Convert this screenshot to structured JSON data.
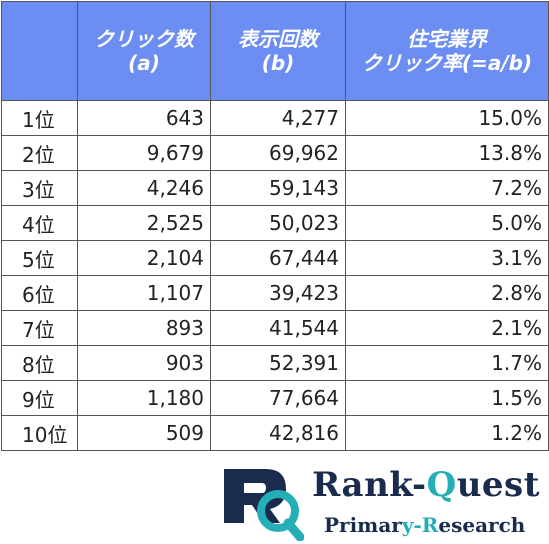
{
  "table": {
    "headers": [
      {
        "line1": "",
        "line2": ""
      },
      {
        "line1": "クリック数",
        "line2": "(a)"
      },
      {
        "line1": "表示回数",
        "line2": "(b)"
      },
      {
        "line1": "住宅業界",
        "line2": "クリック率(=a/b)"
      }
    ],
    "rows": [
      {
        "rank": "1位",
        "clicks": "643",
        "impressions": "4,277",
        "ctr": "15.0%"
      },
      {
        "rank": "2位",
        "clicks": "9,679",
        "impressions": "69,962",
        "ctr": "13.8%"
      },
      {
        "rank": "3位",
        "clicks": "4,246",
        "impressions": "59,143",
        "ctr": "7.2%"
      },
      {
        "rank": "4位",
        "clicks": "2,525",
        "impressions": "50,023",
        "ctr": "5.0%"
      },
      {
        "rank": "5位",
        "clicks": "2,104",
        "impressions": "67,444",
        "ctr": "3.1%"
      },
      {
        "rank": "6位",
        "clicks": "1,107",
        "impressions": "39,423",
        "ctr": "2.8%"
      },
      {
        "rank": "7位",
        "clicks": "893",
        "impressions": "41,544",
        "ctr": "2.1%"
      },
      {
        "rank": "8位",
        "clicks": "903",
        "impressions": "52,391",
        "ctr": "1.7%"
      },
      {
        "rank": "9位",
        "clicks": "1,180",
        "impressions": "77,664",
        "ctr": "1.5%"
      },
      {
        "rank": "10位",
        "clicks": "509",
        "impressions": "42,816",
        "ctr": "1.2%"
      }
    ]
  },
  "logo": {
    "title_a": "Rank-",
    "title_b": "Q",
    "title_c": "uest",
    "sub_a": "Primar",
    "sub_b": "y-R",
    "sub_c": "esearch",
    "colors": {
      "navy": "#1a2c4e",
      "teal": "#24aeb5"
    }
  },
  "colors": {
    "header_bg": "#6c8ef2",
    "header_text": "#ffffff"
  }
}
